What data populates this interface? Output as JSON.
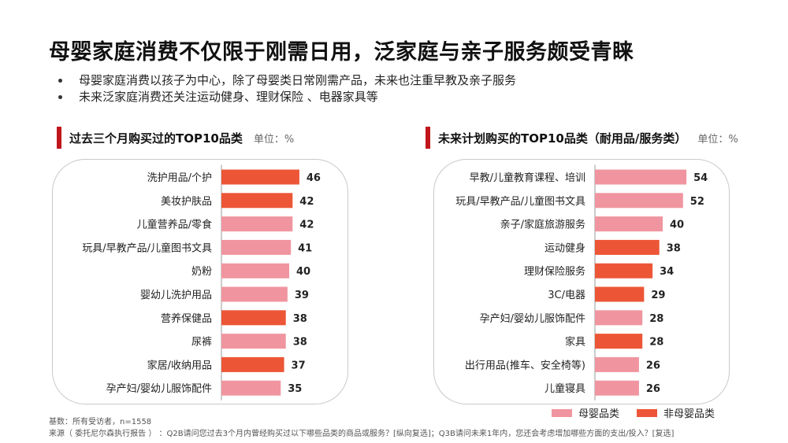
{
  "title": "母婴家庭消费不仅限于刚需日用，泛家庭与亲子服务颇受青睐",
  "bullets": [
    "母婴家庭消费以孩子为中心，除了母婴类日常刚需产品，未来也注重早教及亲子服务",
    "未来泛家庭消费还关注运动健身、理财保险 、电器家具等"
  ],
  "colors": {
    "maternal": "#f0959f",
    "non_maternal": "#ec5636",
    "accent": "#c0161c"
  },
  "legend": {
    "maternal": "母婴品类",
    "non_maternal": "非母婴品类"
  },
  "footnote": {
    "base": "基数：所有受访者，n=1558",
    "source": "来源（ 委托尼尔森执行报告 ） ：Q2B请问您过去3个月内曾经购买过以下哪些品类的商品或服务？[纵向复选]；Q3B请问未来1年内，您还会考虑增加哪些方面的支出/投入？[复选]"
  },
  "chart_data": [
    {
      "type": "bar",
      "orientation": "horizontal",
      "title": "过去三个月购买过的TOP10品类",
      "unit": "单位：%",
      "xlim": [
        0,
        60
      ],
      "categories": [
        "洗护用品/个护",
        "美妆护肤品",
        "儿童营养品/零食",
        "玩具/早教产品/儿童图书文具",
        "奶粉",
        "婴幼儿洗护用品",
        "营养保健品",
        "尿裤",
        "家居/收纳用品",
        "孕产妇/婴幼儿服饰配件"
      ],
      "values": [
        46,
        42,
        42,
        41,
        40,
        39,
        38,
        38,
        37,
        35
      ],
      "groups": [
        "非母婴品类",
        "非母婴品类",
        "母婴品类",
        "母婴品类",
        "母婴品类",
        "母婴品类",
        "非母婴品类",
        "母婴品类",
        "非母婴品类",
        "母婴品类"
      ]
    },
    {
      "type": "bar",
      "orientation": "horizontal",
      "title": "未来计划购买的TOP10品类（耐用品/服务类）",
      "unit": "单位：%",
      "xlim": [
        0,
        60
      ],
      "categories": [
        "早教/儿童教育课程、培训",
        "玩具/早教产品/儿童图书文具",
        "亲子/家庭旅游服务",
        "运动健身",
        "理财保险服务",
        "3C/电器",
        "孕产妇/婴幼儿服饰配件",
        "家具",
        "出行用品(推车、安全椅等)",
        "儿童寝具"
      ],
      "values": [
        54,
        52,
        40,
        38,
        34,
        29,
        28,
        28,
        26,
        26
      ],
      "groups": [
        "母婴品类",
        "母婴品类",
        "母婴品类",
        "非母婴品类",
        "非母婴品类",
        "非母婴品类",
        "母婴品类",
        "非母婴品类",
        "母婴品类",
        "母婴品类"
      ]
    }
  ]
}
